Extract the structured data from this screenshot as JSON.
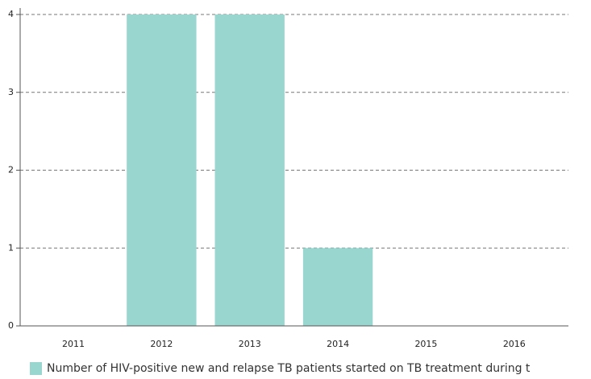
{
  "chart_data": {
    "type": "bar",
    "categories": [
      "2011",
      "2012",
      "2013",
      "2014",
      "2015",
      "2016"
    ],
    "series": [
      {
        "name": "Number of HIV-positive new and relapse TB patients started on TB treatment during t",
        "color": "#99d6d0",
        "values": [
          0,
          4,
          4,
          1,
          0,
          0
        ]
      }
    ],
    "ylim": [
      0,
      4
    ],
    "yticks": [
      0,
      1,
      2,
      3,
      4
    ],
    "grid": true
  }
}
